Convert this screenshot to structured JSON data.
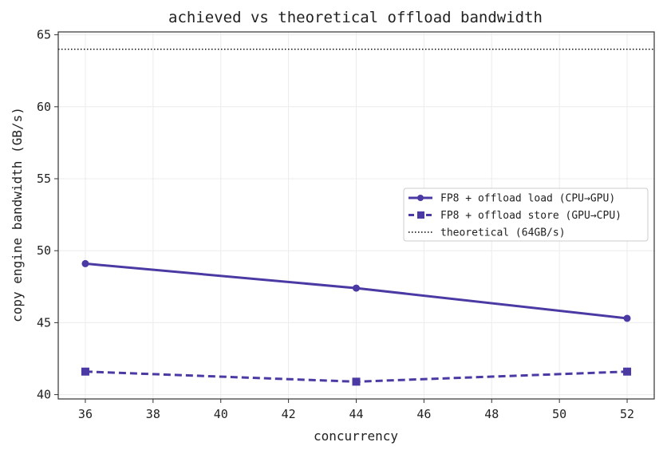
{
  "chart_data": {
    "type": "line",
    "title": "achieved vs theoretical offload bandwidth",
    "xlabel": "concurrency",
    "ylabel": "copy engine bandwidth (GB/s)",
    "xlim": [
      35.2,
      52.8
    ],
    "ylim": [
      39.7,
      65.2
    ],
    "xticks": [
      36,
      38,
      40,
      42,
      44,
      46,
      48,
      50,
      52
    ],
    "yticks": [
      40,
      45,
      50,
      55,
      60,
      65
    ],
    "grid": true,
    "legend_position": "center-right",
    "series": [
      {
        "name": "FP8 + offload load (CPU→GPU)",
        "x": [
          36,
          44,
          52
        ],
        "y": [
          49.1,
          47.4,
          45.3
        ],
        "style": "solid",
        "marker": "circle",
        "color": "#4b3aa3"
      },
      {
        "name": "FP8 + offload store (GPU→CPU)",
        "x": [
          36,
          44,
          52
        ],
        "y": [
          41.6,
          40.9,
          41.6
        ],
        "style": "dashed",
        "marker": "square",
        "color": "#4b3aa3"
      }
    ],
    "reference_lines": [
      {
        "name": "theoretical (64GB/s)",
        "y": 64,
        "style": "dotted",
        "color": "#000000"
      }
    ]
  }
}
